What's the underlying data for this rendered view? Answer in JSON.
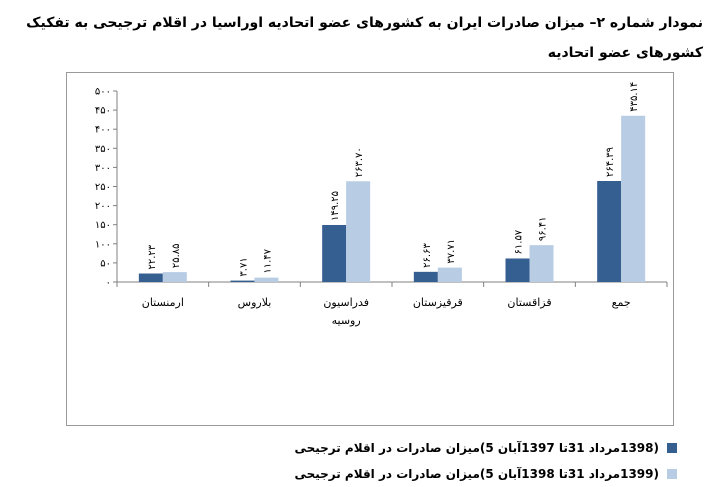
{
  "title": "نمودار شماره ۲– میزان صادرات ایران به کشورهای عضو اتحادیه اوراسیا در اقلام ترجیحی به تفکیک کشورهای عضو اتحادیه",
  "colors": {
    "series1": "#365f91",
    "series2": "#b8cce4"
  },
  "chart_data": {
    "type": "bar",
    "categories": [
      "ارمنستان",
      "بلاروس",
      "فدراسیون روسیه",
      "قرقیزستان",
      "قزاقستان",
      "جمع"
    ],
    "series": [
      {
        "name": "(1398مرداد 31تا 1397آبان 5)میزان صادرات در اقلام ترجیحی",
        "values": [
          22.23,
          3.71,
          149.25,
          26.63,
          61.57,
          264.39
        ],
        "labels": [
          "۲۲.۲۳",
          "۳.۷۱",
          "۱۴۹.۲۵",
          "۲۶.۶۳",
          "۶۱.۵۷",
          "۲۶۴.۳۹"
        ]
      },
      {
        "name": "(1399مرداد 31تا 1398آبان 5)میزان صادرات در اقلام ترجیحی",
        "values": [
          25.85,
          11.47,
          263.7,
          37.71,
          96.41,
          435.14
        ],
        "labels": [
          "۲۵.۸۵",
          "۱۱.۴۷",
          "۲۶۳.۷۰",
          "۳۷.۷۱",
          "۹۶.۴۱",
          "۴۳۵.۱۴"
        ]
      }
    ],
    "yticks": [
      "۰",
      "۵۰",
      "۱۰۰",
      "۱۵۰",
      "۲۰۰",
      "۲۵۰",
      "۳۰۰",
      "۳۵۰",
      "۴۰۰",
      "۴۵۰",
      "۵۰۰"
    ],
    "ylim": [
      0,
      500
    ],
    "grid": false,
    "legend": "bottom"
  }
}
